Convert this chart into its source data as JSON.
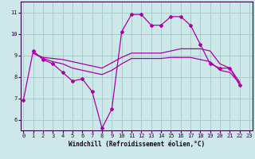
{
  "xlabel": "Windchill (Refroidissement éolien,°C)",
  "bg_color": "#cce8e8",
  "grid_color": "#aacccc",
  "line_color": "#aa00aa",
  "xlim": [
    -0.3,
    23.3
  ],
  "ylim": [
    5.5,
    11.5
  ],
  "xticks": [
    0,
    1,
    2,
    3,
    4,
    5,
    6,
    7,
    8,
    9,
    10,
    11,
    12,
    13,
    14,
    15,
    16,
    17,
    18,
    19,
    20,
    21,
    22,
    23
  ],
  "yticks": [
    6,
    7,
    8,
    9,
    10,
    11
  ],
  "series1_x": [
    0,
    1,
    2,
    3,
    4,
    5,
    6,
    7,
    8,
    9,
    10,
    11,
    12,
    13,
    14,
    15,
    16,
    17,
    18,
    19,
    20,
    21,
    22
  ],
  "series1_y": [
    6.9,
    9.2,
    8.8,
    8.6,
    8.2,
    7.8,
    7.9,
    7.3,
    5.6,
    6.5,
    10.1,
    10.9,
    10.9,
    10.4,
    10.4,
    10.8,
    10.8,
    10.4,
    9.5,
    8.6,
    8.4,
    8.4,
    7.6
  ],
  "series2_x": [
    1,
    2,
    3,
    4,
    5,
    6,
    7,
    8,
    9,
    10,
    11,
    12,
    13,
    14,
    15,
    16,
    17,
    18,
    19,
    20,
    21,
    22
  ],
  "series2_y": [
    9.1,
    8.9,
    8.85,
    8.8,
    8.7,
    8.6,
    8.5,
    8.4,
    8.65,
    8.9,
    9.1,
    9.1,
    9.1,
    9.1,
    9.2,
    9.3,
    9.3,
    9.3,
    9.2,
    8.6,
    8.4,
    7.75
  ],
  "series3_x": [
    1,
    2,
    3,
    4,
    5,
    6,
    7,
    8,
    9,
    10,
    11,
    12,
    13,
    14,
    15,
    16,
    17,
    18,
    19,
    20,
    21,
    22
  ],
  "series3_y": [
    9.1,
    8.85,
    8.7,
    8.6,
    8.4,
    8.3,
    8.2,
    8.1,
    8.3,
    8.6,
    8.85,
    8.85,
    8.85,
    8.85,
    8.9,
    8.9,
    8.9,
    8.8,
    8.7,
    8.3,
    8.2,
    7.7
  ]
}
